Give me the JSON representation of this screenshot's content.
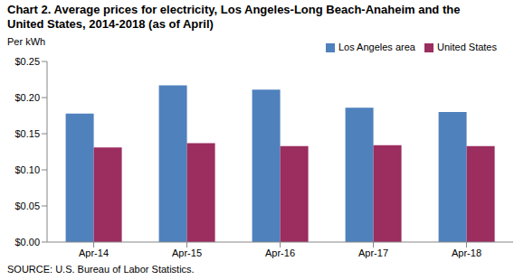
{
  "chart_data": {
    "type": "bar",
    "title": "Chart 2. Average prices for electricity, Los Angeles-Long Beach-Anaheim and the United States, 2014-2018  (as of April)",
    "y_label": "Per kWh",
    "source": "SOURCE: U.S. Bureau of Labor Statistics.",
    "categories": [
      "Apr-14",
      "Apr-15",
      "Apr-16",
      "Apr-17",
      "Apr-18"
    ],
    "series": [
      {
        "name": "Los Angeles area",
        "color": "#4f81bd",
        "values": [
          0.178,
          0.217,
          0.211,
          0.186,
          0.18
        ]
      },
      {
        "name": "United States",
        "color": "#9b2d5f",
        "values": [
          0.131,
          0.137,
          0.133,
          0.134,
          0.133
        ]
      }
    ],
    "ylim": [
      0,
      0.25
    ],
    "yticks": [
      {
        "value": 0,
        "label": "$0.00"
      },
      {
        "value": 0.05,
        "label": "$0.05"
      },
      {
        "value": 0.1,
        "label": "$0.10"
      },
      {
        "value": 0.15,
        "label": "$0.15"
      },
      {
        "value": 0.2,
        "label": "$0.20"
      },
      {
        "value": 0.25,
        "label": "$0.25"
      }
    ],
    "grid": false,
    "legend": "top-right"
  }
}
